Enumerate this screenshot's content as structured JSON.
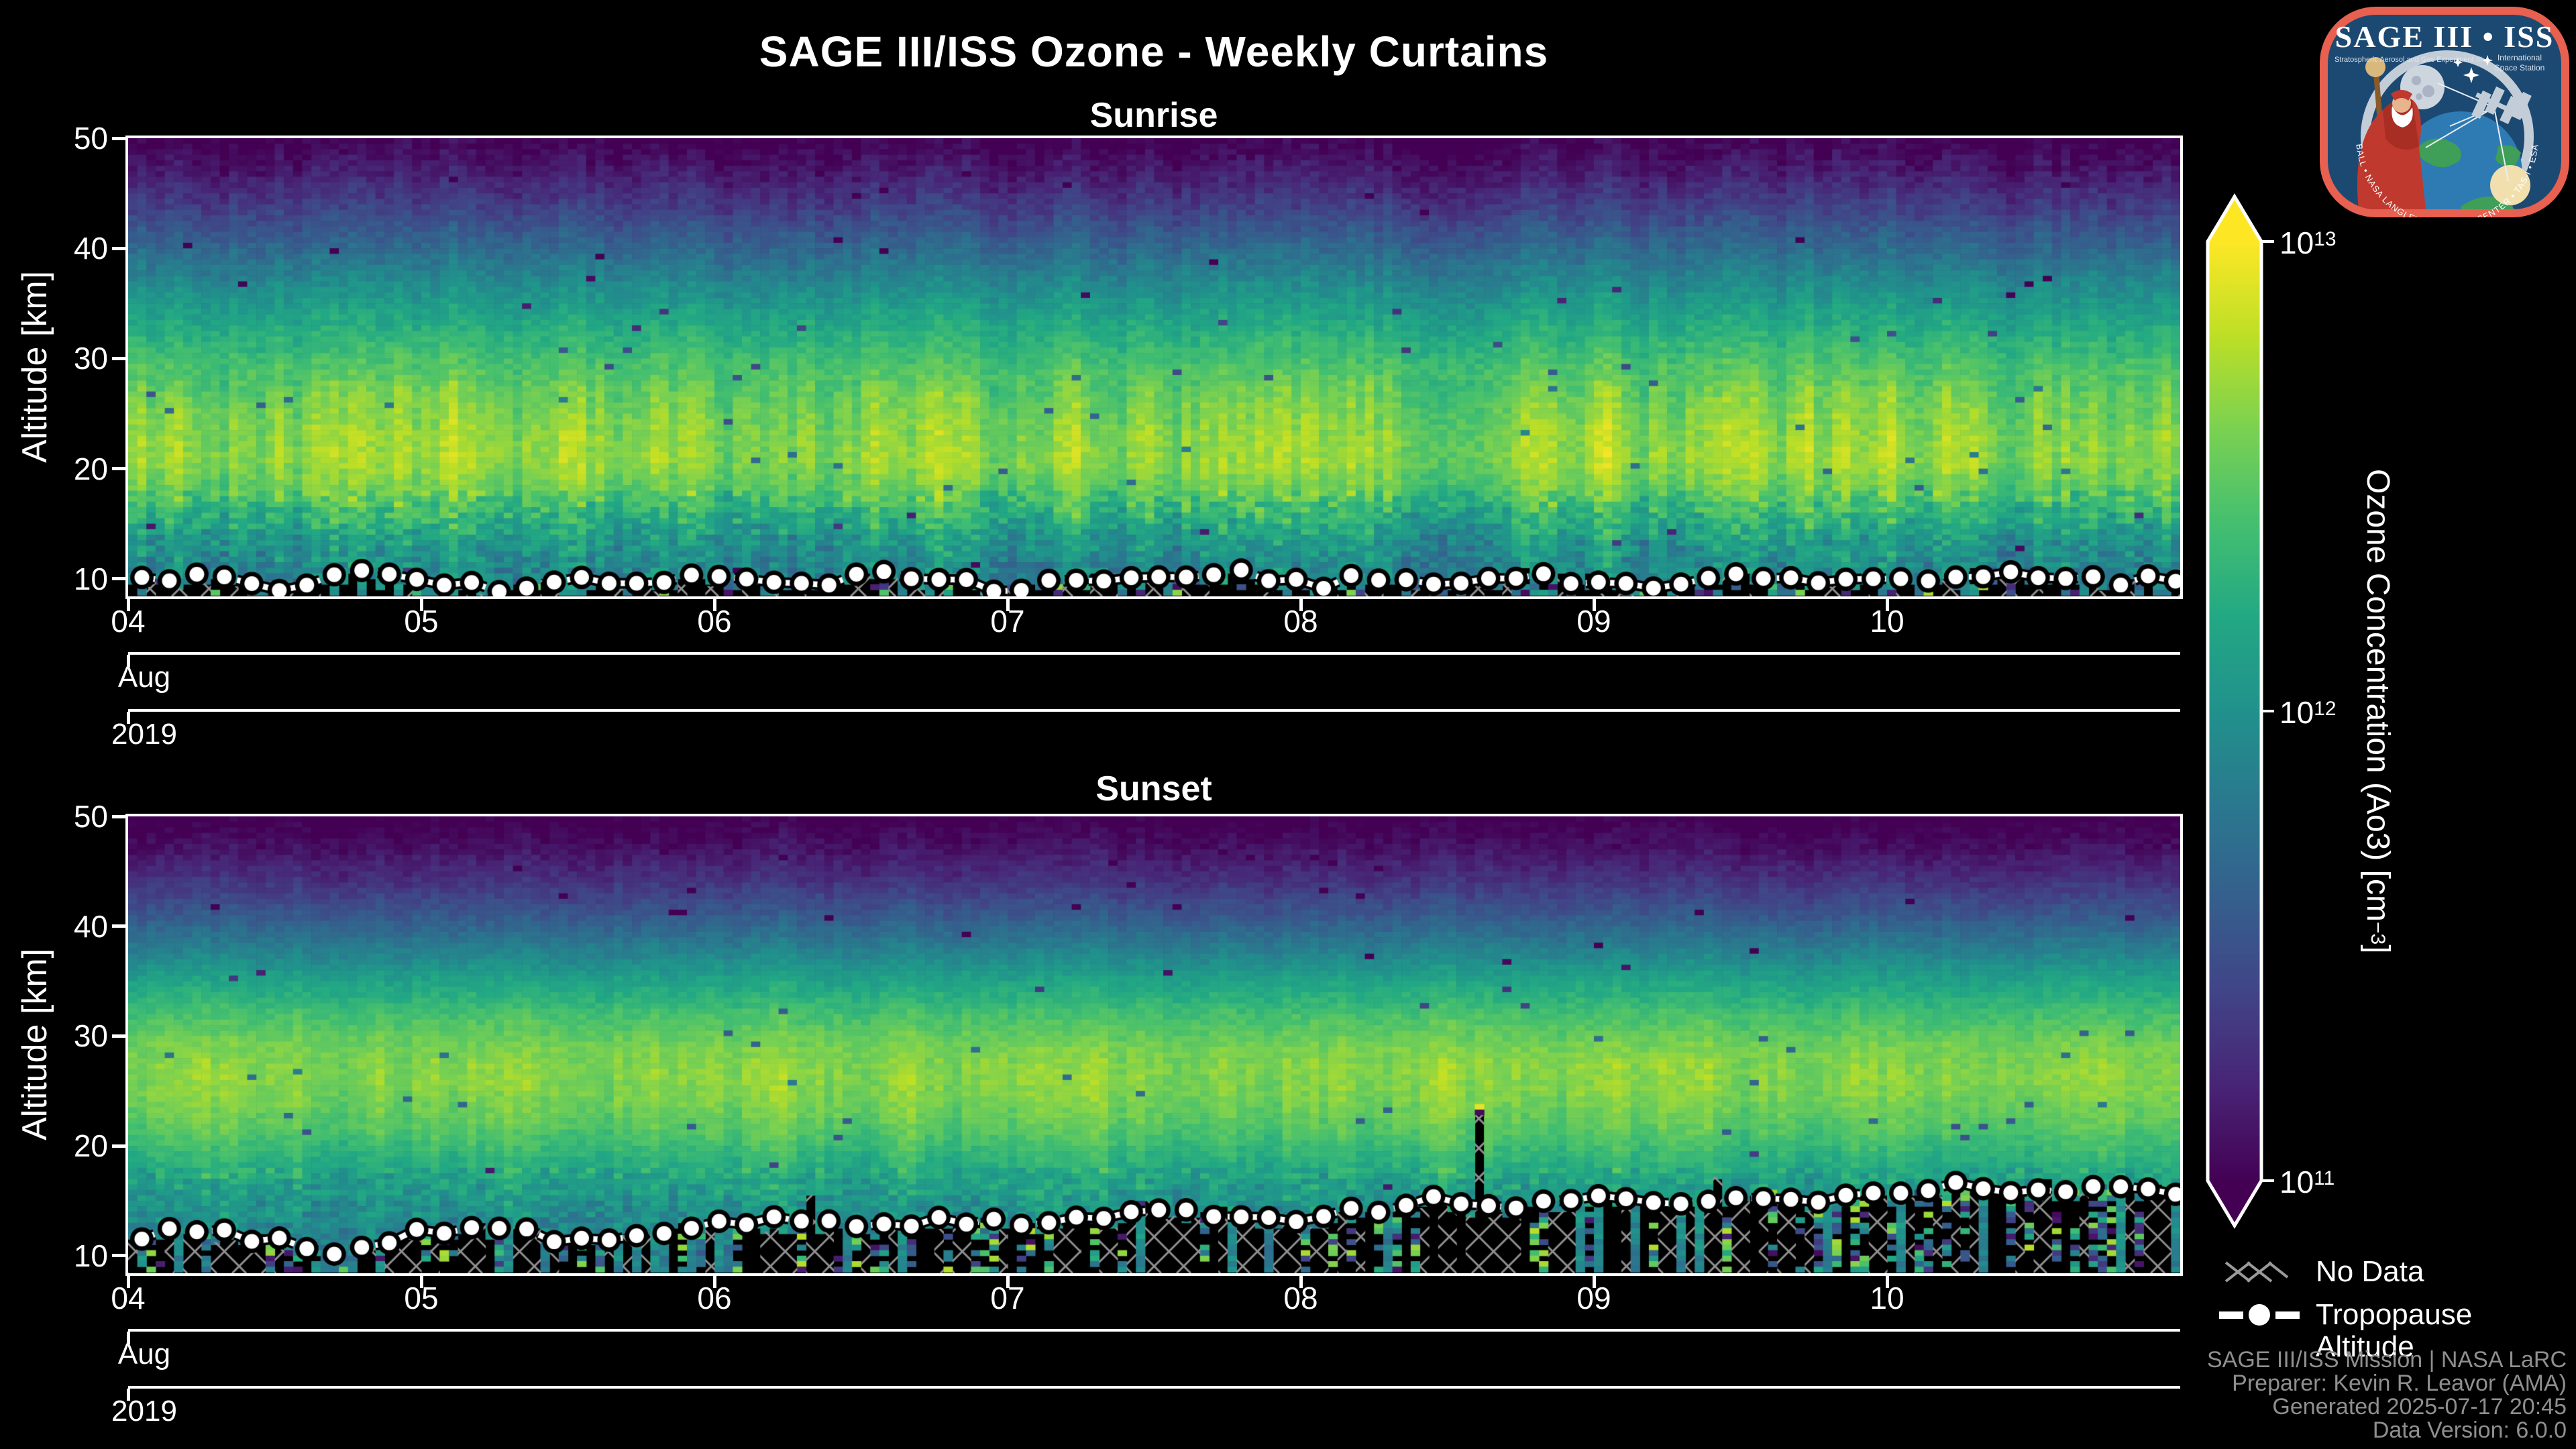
{
  "figure": {
    "title": "SAGE III/ISS Ozone - Weekly Curtains",
    "background": "#000000"
  },
  "panels": [
    {
      "title": "Sunrise"
    },
    {
      "title": "Sunset"
    }
  ],
  "axes": {
    "y_label": "Altitude [km]",
    "y_ticks": [
      50,
      40,
      30,
      20,
      10
    ],
    "x_tick_labels": [
      "04",
      "05",
      "06",
      "07",
      "08",
      "09",
      "10"
    ],
    "x_month_label": "Aug",
    "x_year_label": "2019"
  },
  "colorbar": {
    "label_pre": "Ozone Concentration (Ao3) [cm",
    "label_sup": "−3",
    "label_post": "]",
    "colormap": "viridis",
    "scale": "log",
    "ticks": [
      {
        "base": "10",
        "exp": "13"
      },
      {
        "base": "10",
        "exp": "12"
      },
      {
        "base": "10",
        "exp": "11"
      }
    ]
  },
  "legend": {
    "no_data_label": "No Data",
    "tropopause_label": "Tropopause Altitude"
  },
  "attribution": {
    "lines": [
      "SAGE III/ISS Mission | NASA LaRC",
      "Preparer: Kevin R. Leavor (AMA)",
      "Generated 2025-07-17 20:45",
      "Data Version: 6.0.0"
    ]
  },
  "logo": {
    "title": "SAGE III • ISS",
    "subtitle_left": "Stratospheric Aerosol and Gas Experiment III",
    "subtitle_right_1": "International",
    "subtitle_right_2": "Space Station",
    "ring_text": "BALL  •  NASA LANGLEY RESEARCH CENTER  •  TAS-I  •  ESA"
  },
  "chart_data": [
    {
      "type": "heatmap",
      "title": "Sunrise",
      "x_start": "2019-08-04",
      "x_end": "2019-08-11",
      "x_tick_labels": [
        "04",
        "05",
        "06",
        "07",
        "08",
        "09",
        "10"
      ],
      "x_axis_levels": [
        "Aug",
        "2019"
      ],
      "y_label": "Altitude [km]",
      "y_range_km": [
        8.4,
        50
      ],
      "y_ticks": [
        10,
        20,
        30,
        40,
        50
      ],
      "color": {
        "scale": "log",
        "colormap": "viridis",
        "vmin": 100000000000.0,
        "vmax": 10000000000000.0,
        "extend": "both"
      },
      "ozone_profile_log10": {
        "altitude_km": [
          50,
          47,
          44,
          41,
          38,
          35,
          32,
          29,
          26,
          23,
          20.5,
          18,
          16,
          14,
          12,
          10,
          8.4
        ],
        "log10_concentration": [
          10.98,
          11.15,
          11.35,
          11.6,
          11.85,
          12.08,
          12.28,
          12.45,
          12.58,
          12.66,
          12.68,
          12.52,
          12.3,
          12.12,
          12.0,
          11.92,
          11.86
        ]
      },
      "tropopause_altitude_km": {
        "day_offset": [
          0,
          0.25,
          0.5,
          0.75,
          1,
          1.25,
          1.5,
          1.75,
          2,
          2.25,
          2.5,
          2.75,
          3,
          3.25,
          3.5,
          3.75,
          4,
          4.25,
          4.5,
          4.75,
          5,
          5.25,
          5.5,
          5.75,
          6,
          6.25,
          6.5,
          6.75,
          7
        ],
        "altitude": [
          9.8,
          10.2,
          9.3,
          10.5,
          9.9,
          9.0,
          10.4,
          9.6,
          10.1,
          9.0,
          10.6,
          9.8,
          9.2,
          10.3,
          9.6,
          10.7,
          9.4,
          10.0,
          9.2,
          10.4,
          9.8,
          9.3,
          10.5,
          10.0,
          9.5,
          10.7,
          10.1,
          9.6,
          10.3
        ]
      },
      "no_data": "hatched regions below profile termination near tropopause",
      "no_data_tall": [],
      "render": {
        "seed": 11,
        "columns": 224,
        "row_km": 0.5,
        "column_noise": 0.12,
        "cell_noise": 0.09,
        "low_alt_noise": 0.34,
        "hatch_fraction": 0.45,
        "speckle_fraction": 0.33,
        "trop_jitter": 1.0,
        "trop_clamp": [
          8.7,
          12.3
        ]
      }
    },
    {
      "type": "heatmap",
      "title": "Sunset",
      "x_start": "2019-08-04",
      "x_end": "2019-08-11",
      "x_tick_labels": [
        "04",
        "05",
        "06",
        "07",
        "08",
        "09",
        "10"
      ],
      "x_axis_levels": [
        "Aug",
        "2019"
      ],
      "y_label": "Altitude [km]",
      "y_range_km": [
        8.4,
        50
      ],
      "y_ticks": [
        10,
        20,
        30,
        40,
        50
      ],
      "color": {
        "scale": "log",
        "colormap": "viridis",
        "vmin": 100000000000.0,
        "vmax": 10000000000000.0,
        "extend": "both"
      },
      "ozone_profile_log10": {
        "altitude_km": [
          50,
          47,
          44,
          41,
          38,
          35,
          32,
          29,
          27,
          25,
          22,
          19,
          17,
          15,
          13,
          11,
          8.4
        ],
        "log10_concentration": [
          10.95,
          11.1,
          11.3,
          11.55,
          11.85,
          12.15,
          12.4,
          12.58,
          12.64,
          12.62,
          12.5,
          12.3,
          12.15,
          12.05,
          11.95,
          11.9,
          11.86
        ]
      },
      "tropopause_altitude_km": {
        "day_offset": [
          0,
          0.25,
          0.5,
          0.75,
          1,
          1.25,
          1.5,
          1.75,
          2,
          2.25,
          2.5,
          2.75,
          3,
          3.25,
          3.5,
          3.75,
          4,
          4.25,
          4.5,
          4.75,
          5,
          5.25,
          5.5,
          5.75,
          6,
          6.25,
          6.5,
          6.75,
          7
        ],
        "altitude": [
          11.9,
          12.2,
          11.5,
          9.9,
          12.4,
          12.6,
          11.4,
          12.2,
          12.8,
          13.2,
          12.4,
          13.4,
          12.9,
          13.3,
          14.6,
          13.7,
          12.9,
          14.3,
          15.1,
          14.2,
          15.3,
          14.5,
          15.7,
          14.9,
          15.6,
          16.3,
          15.5,
          16.4,
          15.3
        ]
      },
      "no_data": "hatched regions below profile termination near tropopause",
      "no_data_tall": [
        {
          "day": 4.62,
          "alt": 22.8,
          "cap": true
        },
        {
          "day": 2.32,
          "alt": 15.5
        },
        {
          "day": 5.42,
          "alt": 17.2
        },
        {
          "day": 6.55,
          "alt": 17.0
        },
        {
          "day": 6.93,
          "alt": 16.5
        }
      ],
      "render": {
        "seed": 23,
        "columns": 224,
        "row_km": 0.5,
        "column_noise": 0.07,
        "cell_noise": 0.07,
        "low_alt_noise": 0.3,
        "hatch_fraction": 0.55,
        "speckle_fraction": 0.33,
        "trop_jitter": 0.9,
        "trop_clamp": [
          9.2,
          17.6
        ]
      }
    }
  ]
}
